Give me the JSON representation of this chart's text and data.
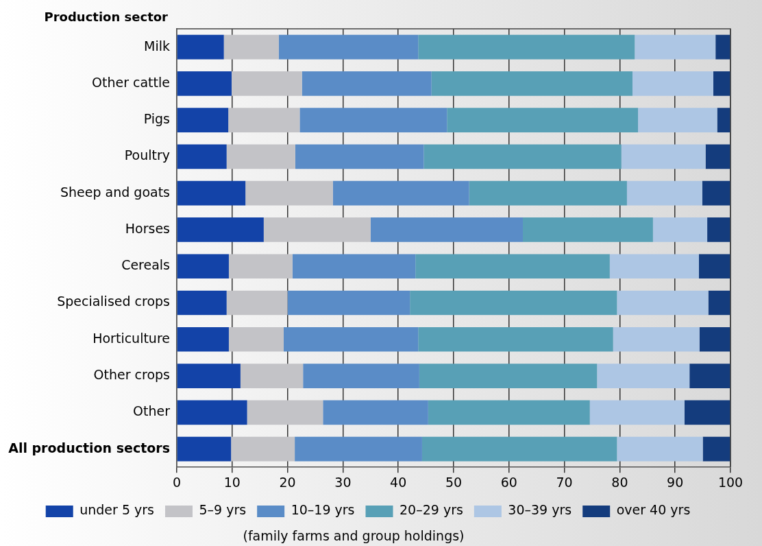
{
  "chart_data": {
    "type": "bar",
    "orientation": "horizontal",
    "stacked": true,
    "ylabel": "Production sector",
    "categories": [
      "Milk",
      "Other cattle",
      "Pigs",
      "Poultry",
      "Sheep and goats",
      "Horses",
      "Cereals",
      "Specialised crops",
      "Horticulture",
      "Other crops",
      "Other",
      "All production sectors"
    ],
    "series": [
      {
        "name": "under 5 yrs",
        "color": "#1343a8",
        "values": [
          8.5,
          9.9,
          9.3,
          9.0,
          12.4,
          15.7,
          9.4,
          9.0,
          9.4,
          11.5,
          12.7,
          9.8
        ]
      },
      {
        "name": "5–9 yrs",
        "color": "#c3c3c7",
        "values": [
          9.9,
          12.7,
          12.9,
          12.4,
          15.8,
          19.3,
          11.5,
          11.0,
          9.9,
          11.3,
          13.7,
          11.5
        ]
      },
      {
        "name": "10–19 yrs",
        "color": "#5a8cc7",
        "values": [
          25.2,
          23.4,
          26.6,
          23.2,
          24.6,
          27.5,
          22.2,
          22.1,
          24.3,
          21.0,
          19.0,
          23.0
        ]
      },
      {
        "name": "20–29 yrs",
        "color": "#58a0b6",
        "values": [
          39.1,
          36.3,
          34.5,
          35.7,
          28.5,
          23.5,
          35.1,
          37.4,
          35.2,
          32.1,
          29.2,
          35.2
        ]
      },
      {
        "name": "30–39 yrs",
        "color": "#adc6e4",
        "values": [
          14.6,
          14.6,
          14.3,
          15.2,
          13.6,
          9.8,
          16.1,
          16.5,
          15.6,
          16.7,
          17.1,
          15.5
        ]
      },
      {
        "name": "over 40 yrs",
        "color": "#143c7d",
        "values": [
          2.7,
          3.1,
          2.4,
          4.5,
          5.1,
          4.2,
          5.7,
          4.0,
          5.6,
          7.4,
          8.3,
          5.0
        ]
      }
    ],
    "xlim": [
      0,
      100
    ],
    "xticks": [
      0,
      10,
      20,
      30,
      40,
      50,
      60,
      70,
      80,
      90,
      100
    ],
    "grid": "x",
    "legend": "bottom",
    "annotations": [
      "(family farms and group holdings)"
    ]
  }
}
